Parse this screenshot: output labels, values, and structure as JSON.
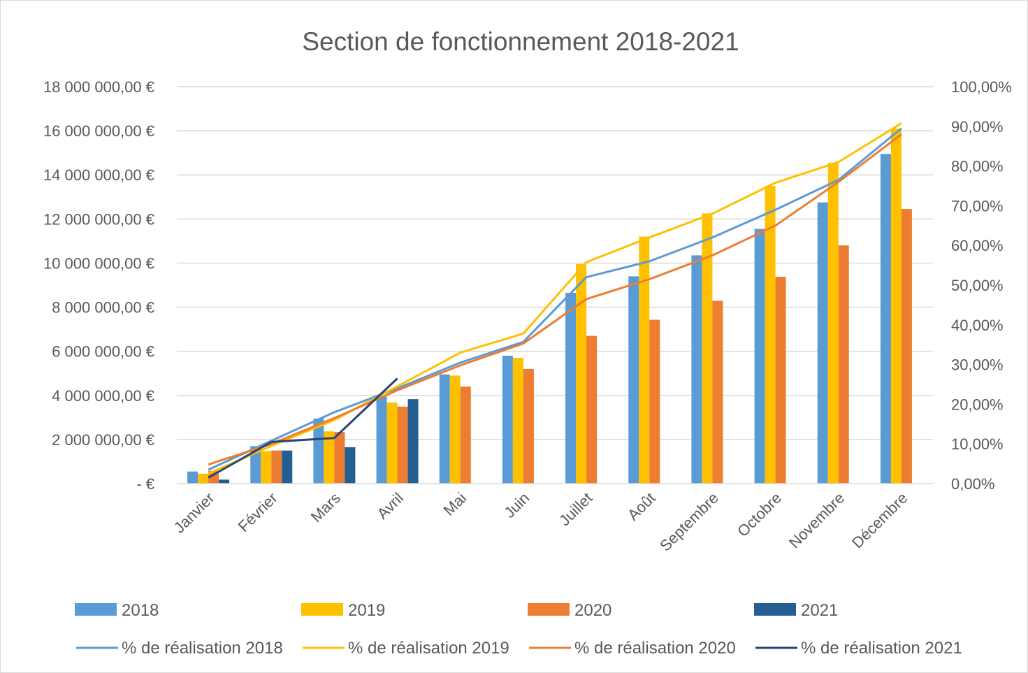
{
  "chart_data": {
    "type": "bar",
    "title": "Section de fonctionnement 2018-2021",
    "categories": [
      "Janvier",
      "Février",
      "Mars",
      "Avril",
      "Mai",
      "Juin",
      "Juillet",
      "Août",
      "Septembre",
      "Octobre",
      "Novembre",
      "Décembre"
    ],
    "y_left": {
      "min": 0,
      "max": 18000000,
      "step": 2000000,
      "tick_labels": [
        "-  €",
        "2 000 000,00 €",
        "4 000 000,00 €",
        "6 000 000,00 €",
        "8 000 000,00 €",
        "10 000 000,00 €",
        "12 000 000,00 €",
        "14 000 000,00 €",
        "16 000 000,00 €",
        "18 000 000,00 €"
      ]
    },
    "y_right": {
      "min": 0,
      "max": 100,
      "step": 10,
      "tick_labels": [
        "0,00%",
        "10,00%",
        "20,00%",
        "30,00%",
        "40,00%",
        "50,00%",
        "60,00%",
        "70,00%",
        "80,00%",
        "90,00%",
        "100,00%"
      ]
    },
    "bar_series": [
      {
        "name": "2018",
        "color": "#5b9bd5",
        "values": [
          550000,
          1700000,
          2950000,
          3950000,
          4950000,
          5800000,
          8650000,
          9400000,
          10350000,
          11550000,
          12750000,
          14950000
        ]
      },
      {
        "name": "2019",
        "color": "#ffc000",
        "values": [
          450000,
          1480000,
          2370000,
          3680000,
          4900000,
          5700000,
          9950000,
          11200000,
          12250000,
          13500000,
          14550000,
          16100000
        ]
      },
      {
        "name": "2020",
        "color": "#ed7d31",
        "values": [
          580000,
          1500000,
          2340000,
          3490000,
          4400000,
          5200000,
          6700000,
          7430000,
          8290000,
          9380000,
          10800000,
          12450000
        ]
      },
      {
        "name": "2021",
        "color": "#255e91",
        "values": [
          180000,
          1500000,
          1650000,
          3830000,
          null,
          null,
          null,
          null,
          null,
          null,
          null,
          null
        ]
      }
    ],
    "line_series": [
      {
        "name": "% de réalisation 2018",
        "color": "#5b9bd5",
        "values": [
          3.5,
          10.8,
          18.0,
          24.0,
          30.5,
          35.7,
          52.0,
          56.0,
          62.0,
          69.0,
          76.5,
          89.5
        ]
      },
      {
        "name": "% de réalisation 2019",
        "color": "#ffc000",
        "values": [
          2.5,
          9.5,
          16.0,
          24.5,
          33.0,
          37.8,
          55.8,
          62.0,
          68.0,
          75.8,
          81.0,
          90.8
        ]
      },
      {
        "name": "% de réalisation 2020",
        "color": "#ed7d31",
        "values": [
          4.8,
          10.0,
          16.5,
          23.5,
          29.8,
          35.3,
          46.5,
          51.5,
          57.5,
          65.0,
          76.0,
          88.0
        ]
      },
      {
        "name": "% de réalisation 2021",
        "color": "#264478",
        "values": [
          1.5,
          10.5,
          11.5,
          26.5,
          null,
          null,
          null,
          null,
          null,
          null,
          null,
          null
        ]
      }
    ],
    "grid": true,
    "legend_position": "bottom"
  }
}
